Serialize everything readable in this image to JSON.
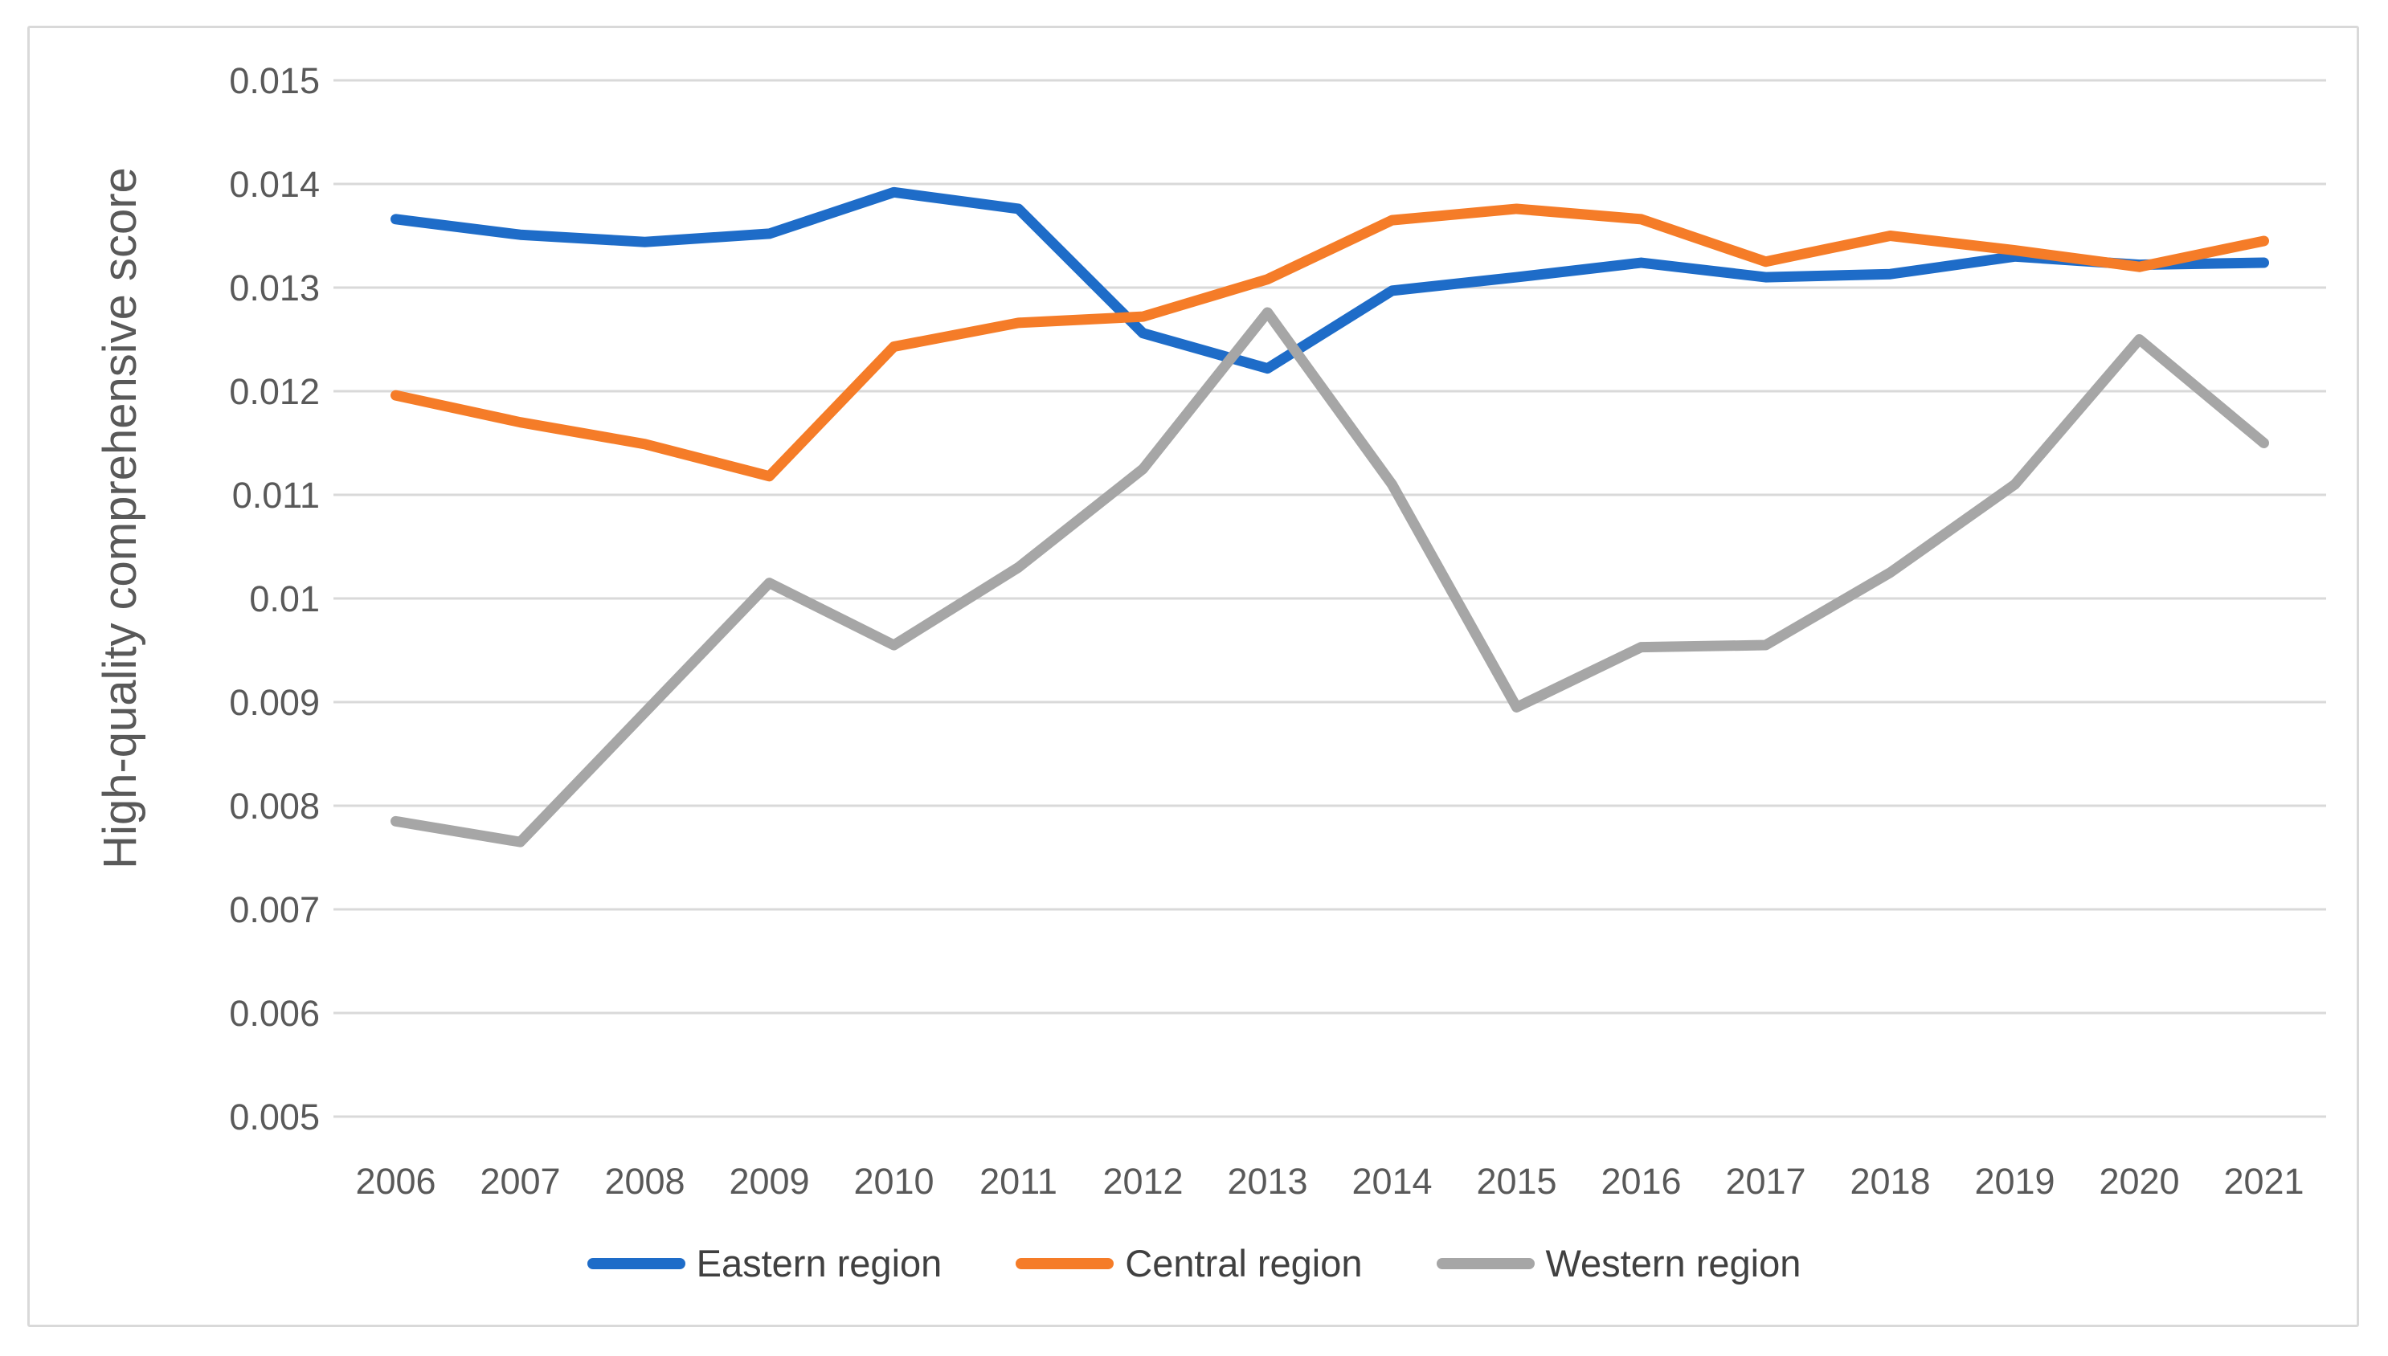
{
  "chart_data": {
    "type": "line",
    "title": "",
    "xlabel": "",
    "ylabel": "High-quality comprehensive score",
    "x": [
      "2006",
      "2007",
      "2008",
      "2009",
      "2010",
      "2011",
      "2012",
      "2013",
      "2014",
      "2015",
      "2016",
      "2017",
      "2018",
      "2019",
      "2020",
      "2021"
    ],
    "ylim": [
      0.005,
      0.015
    ],
    "y_ticks": [
      0.015,
      0.014,
      0.013,
      0.012,
      0.011,
      0.01,
      0.009,
      0.008,
      0.007,
      0.006,
      0.005
    ],
    "grid": "horizontal",
    "legend_position": "bottom",
    "series": [
      {
        "name": "Eastern region",
        "color": "#1E6CC8",
        "values": [
          0.01366,
          0.01351,
          0.01344,
          0.01352,
          0.01392,
          0.01376,
          0.01256,
          0.01222,
          0.01297,
          0.0131,
          0.01324,
          0.0131,
          0.01313,
          0.0133,
          0.01322,
          0.01324
        ]
      },
      {
        "name": "Central region",
        "color": "#F57C28",
        "values": [
          0.01196,
          0.0117,
          0.01149,
          0.01118,
          0.01243,
          0.01266,
          0.01272,
          0.01308,
          0.01365,
          0.01376,
          0.01366,
          0.01325,
          0.0135,
          0.01336,
          0.0132,
          0.01345
        ]
      },
      {
        "name": "Western region",
        "color": "#A6A6A6",
        "values": [
          0.00785,
          0.00765,
          0.0089,
          0.01015,
          0.00955,
          0.0103,
          0.01125,
          0.01276,
          0.0111,
          0.00895,
          0.00953,
          0.00955,
          0.01025,
          0.0111,
          0.0125,
          0.0115
        ]
      }
    ]
  },
  "colors": {
    "grid": "#D9D9D9",
    "frame": "#D9D9D9",
    "axis_text": "#595959",
    "legend_text": "#404040"
  }
}
